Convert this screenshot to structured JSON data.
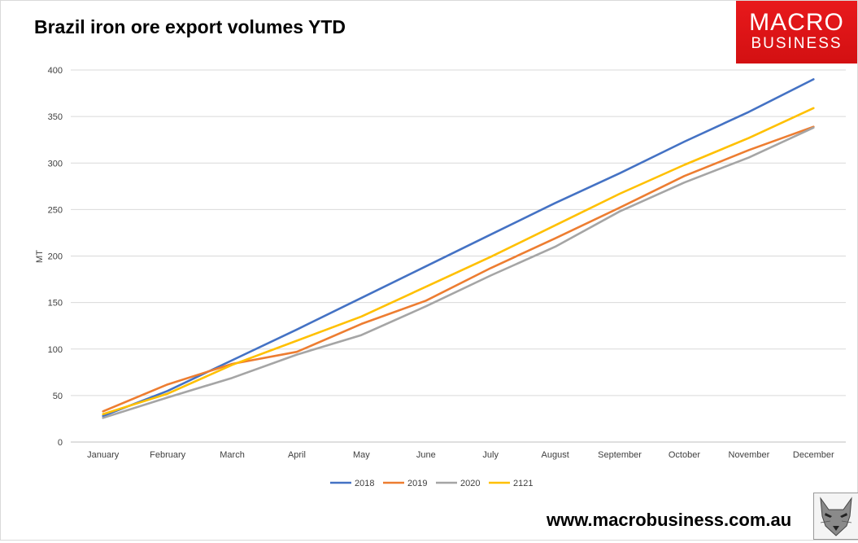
{
  "brand": {
    "line1": "MACRO",
    "line2": "BUSINESS"
  },
  "footer": {
    "url": "www.macrobusiness.com.au"
  },
  "chart_data": {
    "type": "line",
    "title": "Brazil iron ore export volumes YTD",
    "xlabel": "",
    "ylabel": "MT",
    "ylim": [
      0,
      400
    ],
    "yticks": [
      0,
      50,
      100,
      150,
      200,
      250,
      300,
      350,
      400
    ],
    "categories": [
      "January",
      "February",
      "March",
      "April",
      "May",
      "June",
      "July",
      "August",
      "September",
      "October",
      "November",
      "December"
    ],
    "grid": true,
    "legend_position": "bottom",
    "series": [
      {
        "name": "2018",
        "color": "#4472c4",
        "values": [
          28,
          55,
          88,
          121,
          155,
          189,
          223,
          257,
          289,
          323,
          355,
          390
        ]
      },
      {
        "name": "2019",
        "color": "#ed7d31",
        "values": [
          33,
          62,
          84,
          97,
          127,
          152,
          187,
          219,
          252,
          286,
          314,
          339
        ]
      },
      {
        "name": "2020",
        "color": "#a5a5a5",
        "values": [
          26,
          48,
          69,
          94,
          115,
          146,
          179,
          210,
          248,
          279,
          306,
          338
        ]
      },
      {
        "name": "2121",
        "color": "#ffc000",
        "values": [
          30,
          52,
          83,
          109,
          135,
          167,
          199,
          233,
          267,
          298,
          327,
          359
        ]
      }
    ]
  }
}
